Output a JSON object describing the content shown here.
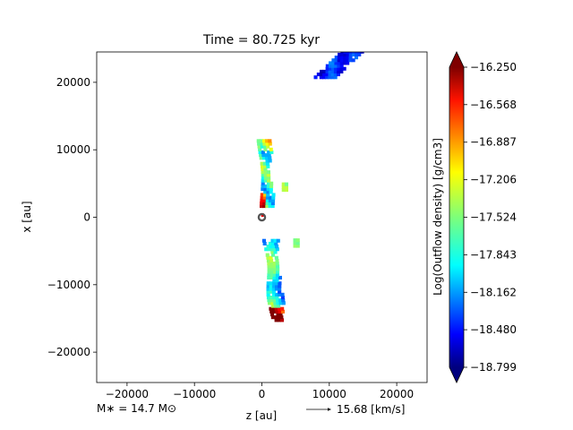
{
  "chart_data": {
    "type": "heatmap",
    "title": "Time = 80.725 kyr",
    "xlabel": "z [au]",
    "ylabel": "x [au]",
    "xlim": [
      -24500,
      24500
    ],
    "ylim": [
      -24500,
      24500
    ],
    "xticks": [
      -20000,
      -10000,
      0,
      10000,
      20000
    ],
    "xtick_labels": [
      "−20000",
      "−10000",
      "0",
      "10000",
      "20000"
    ],
    "yticks": [
      20000,
      10000,
      0,
      -10000,
      -20000
    ],
    "ytick_labels": [
      "20000",
      "10000",
      "0",
      "−10000",
      "−20000"
    ],
    "grid": false,
    "colorbar": {
      "label": "Log(Outflow density) [g/cm3]",
      "min": -18.799,
      "max": -16.25,
      "colormap": "jet",
      "extend": "both",
      "ticks": [
        -16.25,
        -16.568,
        -16.887,
        -17.206,
        -17.524,
        -17.843,
        -18.162,
        -18.48,
        -18.799
      ],
      "tick_labels": [
        "−16.250",
        "−16.568",
        "−16.887",
        "−17.206",
        "−17.524",
        "−17.843",
        "−18.162",
        "−18.480",
        "−18.799"
      ]
    },
    "regions": [
      {
        "name": "upper-right-lobe",
        "z_range": [
          8500,
          15000
        ],
        "x_range": [
          20500,
          24500
        ],
        "log_density_range": [
          -18.6,
          -18.1
        ]
      },
      {
        "name": "upper-inner-lobe",
        "z_range": [
          -1500,
          3500
        ],
        "x_range": [
          1500,
          11500
        ],
        "log_density_range": [
          -18.2,
          -16.5
        ]
      },
      {
        "name": "lower-inner-lobe",
        "z_range": [
          -700,
          5200
        ],
        "x_range": [
          -15500,
          -3200
        ],
        "log_density_range": [
          -18.3,
          -16.3
        ]
      }
    ],
    "annotations": {
      "stellar_mass": "M$_*$ = 14.7 M$_\\odot$",
      "stellar_mass_display": "M∗ = 14.7 M⊙",
      "velocity_key": "15.68 [km/s]"
    },
    "star_marker": {
      "z": 0,
      "x": 0
    }
  }
}
